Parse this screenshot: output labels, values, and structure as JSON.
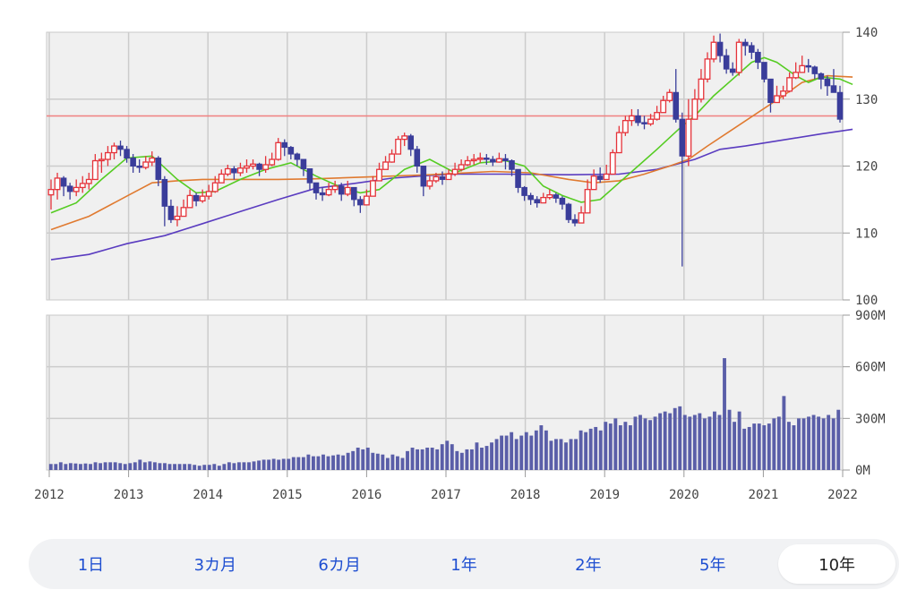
{
  "chart_data": [
    {
      "type": "candlestick",
      "y_ticks": [
        "140",
        "130",
        "120",
        "110",
        "100"
      ],
      "ylim": [
        100,
        140
      ],
      "x_ticks": [
        "2012",
        "2013",
        "2014",
        "2015",
        "2016",
        "2017",
        "2018",
        "2019",
        "2020",
        "2021",
        "2022"
      ],
      "reference_line": 127.5,
      "colors": {
        "up": "#e5333a",
        "down": "#3a3d9a",
        "ma_short": "#55cc22",
        "ma_mid": "#e07a30",
        "ma_long": "#5a3cc0",
        "reference": "#f08080"
      },
      "closes": [
        116.5,
        118.2,
        117.0,
        116.2,
        116.8,
        117.4,
        118.0,
        120.8,
        121.0,
        122.0,
        123.0,
        122.5,
        121.2,
        120.0,
        119.8,
        120.6,
        121.2,
        118.0,
        114.0,
        112.0,
        112.5,
        113.8,
        115.6,
        114.8,
        115.5,
        116.2,
        117.5,
        118.8,
        119.6,
        119.0,
        119.7,
        120.0,
        120.3,
        119.5,
        120.2,
        121.0,
        123.5,
        122.8,
        121.8,
        121.0,
        119.6,
        117.5,
        116.0,
        115.7,
        116.5,
        117.0,
        115.8,
        116.8,
        115.0,
        114.2,
        115.5,
        117.8,
        119.5,
        120.6,
        121.8,
        124.0,
        124.5,
        122.5,
        120.0,
        117.0,
        117.8,
        118.4,
        118.0,
        118.8,
        119.5,
        120.2,
        120.8,
        121.0,
        121.2,
        121.0,
        120.6,
        121.1,
        120.8,
        119.5,
        116.8,
        115.6,
        115.0,
        114.5,
        115.3,
        115.7,
        115.2,
        114.3,
        112.0,
        111.5,
        113.0,
        116.5,
        118.5,
        118.0,
        118.8,
        122.0,
        125.0,
        126.8,
        127.5,
        126.5,
        126.3,
        127.0,
        128.0,
        129.8,
        131.0,
        127.0,
        121.5,
        127.0,
        130.0,
        133.0,
        136.0,
        138.5,
        136.5,
        134.5,
        134.0,
        138.5,
        138.0,
        137.0,
        135.5,
        133.0,
        129.5,
        130.5,
        131.2,
        133.2,
        134.0,
        135.0,
        134.8,
        133.8,
        133.0,
        132.0,
        131.0,
        127.0
      ],
      "ranges": [
        [
          113.5,
          118.0
        ],
        [
          115.0,
          119.0
        ],
        [
          115.5,
          118.5
        ],
        [
          115.0,
          117.5
        ],
        [
          115.5,
          118.0
        ],
        [
          116.0,
          118.5
        ],
        [
          116.5,
          119.0
        ],
        [
          118.0,
          121.8
        ],
        [
          119.0,
          122.0
        ],
        [
          120.0,
          123.0
        ],
        [
          121.0,
          123.5
        ],
        [
          121.5,
          123.8
        ],
        [
          120.5,
          123.0
        ],
        [
          119.0,
          121.8
        ],
        [
          119.0,
          121.0
        ],
        [
          119.5,
          121.5
        ],
        [
          120.0,
          122.2
        ],
        [
          117.0,
          121.5
        ],
        [
          111.0,
          118.5
        ],
        [
          111.5,
          115.0
        ],
        [
          111.0,
          114.0
        ],
        [
          112.5,
          115.0
        ],
        [
          114.0,
          116.5
        ],
        [
          114.0,
          116.0
        ],
        [
          114.5,
          116.5
        ],
        [
          115.0,
          117.2
        ],
        [
          116.0,
          118.5
        ],
        [
          117.5,
          119.5
        ],
        [
          118.5,
          120.2
        ],
        [
          118.0,
          120.0
        ],
        [
          118.5,
          120.5
        ],
        [
          119.0,
          121.0
        ],
        [
          119.5,
          121.0
        ],
        [
          118.5,
          120.5
        ],
        [
          119.0,
          121.5
        ],
        [
          120.0,
          122.0
        ],
        [
          120.8,
          124.2
        ],
        [
          121.5,
          124.0
        ],
        [
          121.0,
          123.0
        ],
        [
          120.0,
          122.0
        ],
        [
          118.5,
          120.5
        ],
        [
          116.5,
          119.0
        ],
        [
          115.0,
          117.0
        ],
        [
          114.8,
          116.8
        ],
        [
          115.5,
          117.5
        ],
        [
          116.0,
          117.8
        ],
        [
          114.8,
          117.5
        ],
        [
          115.5,
          117.8
        ],
        [
          114.0,
          116.0
        ],
        [
          113.0,
          115.5
        ],
        [
          114.5,
          116.5
        ],
        [
          115.5,
          118.5
        ],
        [
          118.0,
          120.5
        ],
        [
          119.5,
          121.5
        ],
        [
          120.5,
          122.5
        ],
        [
          122.5,
          124.5
        ],
        [
          123.0,
          125.0
        ],
        [
          121.5,
          124.8
        ],
        [
          119.0,
          123.0
        ],
        [
          115.5,
          118.0
        ],
        [
          116.5,
          118.5
        ],
        [
          117.5,
          119.0
        ],
        [
          117.2,
          119.2
        ],
        [
          118.0,
          119.5
        ],
        [
          118.5,
          120.5
        ],
        [
          119.2,
          121.0
        ],
        [
          120.0,
          121.5
        ],
        [
          120.2,
          121.8
        ],
        [
          120.5,
          122.0
        ],
        [
          120.2,
          121.8
        ],
        [
          120.0,
          121.5
        ],
        [
          120.5,
          122.0
        ],
        [
          119.5,
          121.8
        ],
        [
          118.5,
          121.0
        ],
        [
          116.0,
          119.5
        ],
        [
          114.8,
          117.0
        ],
        [
          114.2,
          116.0
        ],
        [
          113.8,
          115.5
        ],
        [
          114.5,
          116.0
        ],
        [
          115.0,
          116.5
        ],
        [
          114.5,
          116.0
        ],
        [
          113.5,
          115.5
        ],
        [
          111.5,
          114.5
        ],
        [
          111.0,
          112.8
        ],
        [
          112.0,
          114.0
        ],
        [
          115.0,
          118.0
        ],
        [
          117.5,
          119.5
        ],
        [
          117.5,
          119.8
        ],
        [
          118.0,
          120.2
        ],
        [
          119.5,
          122.5
        ],
        [
          122.0,
          126.0
        ],
        [
          124.5,
          127.5
        ],
        [
          126.0,
          128.5
        ],
        [
          126.0,
          128.5
        ],
        [
          125.5,
          127.5
        ],
        [
          126.0,
          127.8
        ],
        [
          126.8,
          129.0
        ],
        [
          128.5,
          130.5
        ],
        [
          129.5,
          131.5
        ],
        [
          126.5,
          134.5
        ],
        [
          120.5,
          128.0
        ],
        [
          120.0,
          130.0
        ],
        [
          127.0,
          131.5
        ],
        [
          129.5,
          134.5
        ],
        [
          132.5,
          137.0
        ],
        [
          135.5,
          139.5
        ],
        [
          135.5,
          139.8
        ],
        [
          133.8,
          137.5
        ],
        [
          133.5,
          135.5
        ],
        [
          133.5,
          139.0
        ],
        [
          136.5,
          139.0
        ],
        [
          136.0,
          138.5
        ],
        [
          134.5,
          137.5
        ],
        [
          132.5,
          135.5
        ],
        [
          128.0,
          133.0
        ],
        [
          129.5,
          132.0
        ],
        [
          130.0,
          132.0
        ],
        [
          131.0,
          134.0
        ],
        [
          133.0,
          135.5
        ],
        [
          134.0,
          136.5
        ],
        [
          134.0,
          136.0
        ],
        [
          133.0,
          135.0
        ],
        [
          131.5,
          134.0
        ],
        [
          130.5,
          133.5
        ],
        [
          131.0,
          134.5
        ],
        [
          126.5,
          132.0
        ]
      ],
      "spike_low": {
        "index": 100,
        "value": 105.0
      },
      "ma_short": [
        [
          0,
          113.0
        ],
        [
          4,
          114.5
        ],
        [
          8,
          118.0
        ],
        [
          12,
          121.2
        ],
        [
          16,
          121.5
        ],
        [
          20,
          118.0
        ],
        [
          23,
          116.0
        ],
        [
          26,
          116.2
        ],
        [
          30,
          118.0
        ],
        [
          34,
          119.5
        ],
        [
          38,
          120.5
        ],
        [
          42,
          118.5
        ],
        [
          46,
          116.8
        ],
        [
          49,
          116.0
        ],
        [
          52,
          116.5
        ],
        [
          56,
          119.5
        ],
        [
          60,
          121.0
        ],
        [
          64,
          119.0
        ],
        [
          68,
          120.5
        ],
        [
          72,
          120.8
        ],
        [
          75,
          120.0
        ],
        [
          78,
          117.0
        ],
        [
          81,
          115.6
        ],
        [
          84,
          114.6
        ],
        [
          87,
          115.0
        ],
        [
          90,
          117.5
        ],
        [
          93,
          120.0
        ],
        [
          96,
          122.5
        ],
        [
          100,
          126.0
        ],
        [
          102,
          127.5
        ],
        [
          105,
          130.5
        ],
        [
          108,
          133.0
        ],
        [
          111,
          135.5
        ],
        [
          113,
          136.2
        ],
        [
          115,
          135.5
        ],
        [
          118,
          133.5
        ],
        [
          120,
          132.5
        ],
        [
          122,
          133.3
        ],
        [
          125,
          133.0
        ],
        [
          127,
          132.2
        ]
      ],
      "ma_mid": [
        [
          0,
          110.5
        ],
        [
          6,
          112.5
        ],
        [
          12,
          115.5
        ],
        [
          16,
          117.5
        ],
        [
          20,
          117.8
        ],
        [
          24,
          118.0
        ],
        [
          30,
          118.0
        ],
        [
          36,
          118.0
        ],
        [
          42,
          118.1
        ],
        [
          48,
          118.3
        ],
        [
          54,
          118.5
        ],
        [
          60,
          118.7
        ],
        [
          64,
          118.9
        ],
        [
          70,
          119.2
        ],
        [
          76,
          119.0
        ],
        [
          82,
          118.0
        ],
        [
          86,
          117.5
        ],
        [
          90,
          117.8
        ],
        [
          94,
          118.8
        ],
        [
          98,
          120.0
        ],
        [
          101,
          121.0
        ],
        [
          104,
          123.0
        ],
        [
          108,
          125.5
        ],
        [
          112,
          128.0
        ],
        [
          116,
          130.5
        ],
        [
          119,
          132.5
        ],
        [
          123,
          133.5
        ],
        [
          127,
          133.3
        ]
      ],
      "ma_long": [
        [
          0,
          106.0
        ],
        [
          6,
          106.8
        ],
        [
          12,
          108.4
        ],
        [
          18,
          109.6
        ],
        [
          24,
          111.4
        ],
        [
          30,
          113.2
        ],
        [
          36,
          115.0
        ],
        [
          42,
          116.7
        ],
        [
          48,
          117.4
        ],
        [
          54,
          118.2
        ],
        [
          60,
          118.6
        ],
        [
          64,
          118.8
        ],
        [
          72,
          118.8
        ],
        [
          82,
          118.7
        ],
        [
          90,
          118.8
        ],
        [
          96,
          119.5
        ],
        [
          102,
          121.0
        ],
        [
          106,
          122.5
        ],
        [
          110,
          123.0
        ],
        [
          114,
          123.6
        ],
        [
          118,
          124.2
        ],
        [
          122,
          124.8
        ],
        [
          127,
          125.5
        ]
      ]
    },
    {
      "type": "bar",
      "y_ticks": [
        "900M",
        "600M",
        "300M",
        "0M"
      ],
      "ylim": [
        0,
        900
      ],
      "unit": "M",
      "color": "#5a5ea8",
      "values": [
        35,
        35,
        45,
        35,
        40,
        38,
        35,
        38,
        35,
        45,
        40,
        45,
        45,
        45,
        40,
        35,
        40,
        45,
        60,
        45,
        50,
        45,
        40,
        40,
        35,
        35,
        35,
        35,
        35,
        30,
        25,
        30,
        30,
        35,
        25,
        35,
        45,
        40,
        45,
        45,
        45,
        50,
        55,
        60,
        60,
        65,
        60,
        65,
        65,
        75,
        75,
        75,
        90,
        80,
        80,
        90,
        80,
        85,
        90,
        85,
        100,
        110,
        130,
        120,
        130,
        100,
        95,
        90,
        70,
        90,
        80,
        70,
        110,
        130,
        120,
        120,
        130,
        130,
        120,
        150,
        170,
        150,
        110,
        100,
        120,
        120,
        160,
        130,
        140,
        160,
        180,
        200,
        200,
        220,
        180,
        200,
        220,
        200,
        230,
        260,
        230,
        170,
        180,
        180,
        160,
        180,
        180,
        230,
        220,
        240,
        250,
        230,
        280,
        270,
        300,
        260,
        280,
        260,
        310,
        320,
        300,
        290,
        310,
        330,
        340,
        330,
        360,
        370,
        320,
        310,
        320,
        330,
        300,
        310,
        340,
        320,
        650,
        350,
        280,
        340,
        240,
        250,
        270,
        270,
        260,
        270,
        300,
        310,
        430,
        280,
        260,
        300,
        300,
        310,
        320,
        310,
        300,
        320,
        300,
        350
      ]
    }
  ],
  "range_tabs": [
    {
      "label": "1日",
      "active": false
    },
    {
      "label": "3カ月",
      "active": false
    },
    {
      "label": "6カ月",
      "active": false
    },
    {
      "label": "1年",
      "active": false
    },
    {
      "label": "2年",
      "active": false
    },
    {
      "label": "5年",
      "active": false
    },
    {
      "label": "10年",
      "active": true
    }
  ]
}
